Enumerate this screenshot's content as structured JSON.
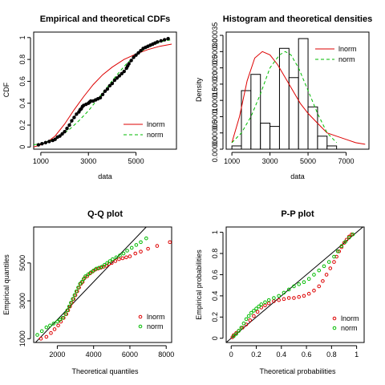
{
  "chart_data": [
    {
      "type": "line",
      "title": "Empirical and theoretical CDFs",
      "xlabel": "data",
      "ylabel": "CDF",
      "xlim": [
        700,
        6700
      ],
      "ylim": [
        -0.02,
        1.05
      ],
      "xticks": [
        1000,
        3000,
        5000
      ],
      "yticks": [
        0.0,
        0.2,
        0.4,
        0.6,
        0.8,
        1.0
      ],
      "legend_position": "bottom-right",
      "legend": [
        {
          "name": "lnorm",
          "color": "#dd0000",
          "dash": "solid"
        },
        {
          "name": "norm",
          "color": "#00bb00",
          "dash": "dashed"
        }
      ],
      "empirical_x": [
        900,
        1050,
        1200,
        1350,
        1500,
        1600,
        1700,
        1800,
        1900,
        2000,
        2100,
        2200,
        2300,
        2400,
        2500,
        2600,
        2650,
        2700,
        2750,
        2800,
        2900,
        3000,
        3050,
        3100,
        3200,
        3300,
        3400,
        3500,
        3600,
        3700,
        3800,
        3900,
        4000,
        4100,
        4200,
        4300,
        4400,
        4500,
        4600,
        4650,
        4700,
        4800,
        4900,
        5000,
        5100,
        5200,
        5300,
        5400,
        5500,
        5600,
        5700,
        5800,
        5900,
        6050,
        6200,
        6350
      ],
      "empirical_y": [
        0.02,
        0.03,
        0.04,
        0.05,
        0.06,
        0.07,
        0.09,
        0.1,
        0.12,
        0.14,
        0.17,
        0.2,
        0.24,
        0.27,
        0.3,
        0.32,
        0.34,
        0.35,
        0.37,
        0.38,
        0.39,
        0.4,
        0.41,
        0.42,
        0.42,
        0.43,
        0.44,
        0.45,
        0.48,
        0.51,
        0.53,
        0.56,
        0.58,
        0.61,
        0.63,
        0.65,
        0.67,
        0.69,
        0.72,
        0.74,
        0.76,
        0.79,
        0.82,
        0.84,
        0.86,
        0.88,
        0.9,
        0.91,
        0.92,
        0.93,
        0.94,
        0.95,
        0.96,
        0.97,
        0.98,
        0.99
      ],
      "lnorm_curve_x": [
        700,
        1000,
        1300,
        1600,
        2000,
        2400,
        2800,
        3200,
        3600,
        4000,
        4500,
        5000,
        5500,
        6000,
        6500
      ],
      "lnorm_curve_y": [
        0.0,
        0.02,
        0.05,
        0.1,
        0.21,
        0.34,
        0.46,
        0.57,
        0.66,
        0.73,
        0.8,
        0.85,
        0.89,
        0.92,
        0.94
      ],
      "norm_curve_x": [
        700,
        1000,
        1400,
        1800,
        2200,
        2600,
        3000,
        3400,
        3800,
        4200,
        4600,
        5000,
        5400,
        5800,
        6200,
        6500
      ],
      "norm_curve_y": [
        0.02,
        0.03,
        0.06,
        0.1,
        0.16,
        0.24,
        0.33,
        0.44,
        0.55,
        0.66,
        0.76,
        0.84,
        0.9,
        0.94,
        0.97,
        0.98
      ]
    },
    {
      "type": "bar",
      "title": "Histogram and theoretical densities",
      "xlabel": "data",
      "ylabel": "Density",
      "xlim": [
        700,
        8200
      ],
      "ylim": [
        0,
        0.00036
      ],
      "xticks": [
        1000,
        3000,
        5000,
        7000
      ],
      "yticks": [
        "0.00000",
        "0.00005",
        "0.00010",
        "0.00015",
        "0.00020",
        "0.00025",
        "0.00030",
        "0.00035"
      ],
      "ytick_values": [
        0,
        5e-05,
        0.0001,
        0.00015,
        0.0002,
        0.00025,
        0.0003,
        0.00035
      ],
      "legend_position": "top-right",
      "legend": [
        {
          "name": "lnorm",
          "color": "#dd0000",
          "dash": "solid"
        },
        {
          "name": "norm",
          "color": "#00bb00",
          "dash": "dashed"
        }
      ],
      "bins": [
        {
          "start": 1000,
          "end": 1500,
          "density": 1e-05
        },
        {
          "start": 1500,
          "end": 2000,
          "density": 0.00018
        },
        {
          "start": 2000,
          "end": 2500,
          "density": 0.00023
        },
        {
          "start": 2500,
          "end": 3000,
          "density": 8e-05
        },
        {
          "start": 3000,
          "end": 3500,
          "density": 7e-05
        },
        {
          "start": 3500,
          "end": 4000,
          "density": 0.00031
        },
        {
          "start": 4000,
          "end": 4500,
          "density": 0.00022
        },
        {
          "start": 4500,
          "end": 5000,
          "density": 0.00034
        },
        {
          "start": 5000,
          "end": 5500,
          "density": 0.00013
        },
        {
          "start": 5500,
          "end": 6000,
          "density": 4e-05
        },
        {
          "start": 6000,
          "end": 6500,
          "density": 1e-05
        }
      ],
      "lnorm_curve_x": [
        1000,
        1400,
        1800,
        2200,
        2600,
        3000,
        3400,
        3800,
        4200,
        4600,
        5000,
        5500,
        6000,
        6500,
        7000,
        7500,
        8000
      ],
      "lnorm_curve_y": [
        2e-05,
        0.0001,
        0.00021,
        0.00028,
        0.0003,
        0.00029,
        0.00026,
        0.00022,
        0.00018,
        0.00014,
        0.00011,
        8e-05,
        5e-05,
        4e-05,
        3e-05,
        2e-05,
        1.5e-05
      ],
      "norm_curve_x": [
        1000,
        1500,
        2000,
        2500,
        3000,
        3500,
        3800,
        4100,
        4500,
        5000,
        5500,
        6000,
        6500
      ],
      "norm_curve_y": [
        2e-05,
        5e-05,
        0.0001,
        0.00017,
        0.00025,
        0.00029,
        0.0003,
        0.00029,
        0.00025,
        0.00018,
        0.00011,
        5e-05,
        2e-05
      ]
    },
    {
      "type": "scatter",
      "title": "Q-Q plot",
      "xlabel": "Theoretical quantiles",
      "ylabel": "Empirical quantiles",
      "xlim": [
        700,
        8300
      ],
      "ylim": [
        800,
        6900
      ],
      "xticks": [
        2000,
        4000,
        6000,
        8000
      ],
      "yticks": [
        1000,
        3000,
        5000
      ],
      "legend_position": "bottom-right",
      "legend": [
        {
          "name": "lnorm",
          "color": "#dd0000",
          "marker": "circle"
        },
        {
          "name": "norm",
          "color": "#00bb00",
          "marker": "circle"
        }
      ],
      "reference_line": [
        [
          700,
          700
        ],
        [
          6900,
          6900
        ]
      ],
      "lnorm_x": [
        1100,
        1400,
        1650,
        1850,
        2050,
        2200,
        2350,
        2500,
        2600,
        2700,
        2800,
        2900,
        3000,
        3100,
        3200,
        3300,
        3400,
        3500,
        3650,
        3800,
        3950,
        4100,
        4250,
        4400,
        4550,
        4700,
        4850,
        5000,
        5200,
        5400,
        5600,
        5800,
        6000,
        6300,
        6600,
        7000,
        7500,
        8200
      ],
      "lnorm_y": [
        1000,
        1100,
        1300,
        1500,
        1700,
        1900,
        2100,
        2300,
        2500,
        2700,
        2900,
        3100,
        3300,
        3500,
        3700,
        3900,
        4000,
        4200,
        4300,
        4450,
        4550,
        4650,
        4700,
        4750,
        4800,
        4850,
        4950,
        5000,
        5100,
        5200,
        5250,
        5300,
        5350,
        5500,
        5600,
        5750,
        5900,
        6100
      ],
      "norm_x": [
        900,
        1150,
        1400,
        1600,
        1800,
        2000,
        2150,
        2300,
        2450,
        2550,
        2650,
        2750,
        2850,
        2950,
        3050,
        3150,
        3250,
        3350,
        3450,
        3550,
        3700,
        3850,
        4000,
        4150,
        4300,
        4450,
        4600,
        4750,
        4900,
        5050,
        5250,
        5450,
        5650,
        5850,
        6100,
        6350,
        6600,
        6900
      ],
      "norm_y": [
        1200,
        1400,
        1600,
        1700,
        1800,
        1900,
        2000,
        2100,
        2300,
        2500,
        2700,
        2900,
        3100,
        3300,
        3500,
        3700,
        3900,
        4000,
        4150,
        4300,
        4400,
        4500,
        4600,
        4700,
        4750,
        4800,
        4900,
        5000,
        5100,
        5200,
        5300,
        5400,
        5500,
        5650,
        5800,
        5950,
        6100,
        6300
      ]
    },
    {
      "type": "scatter",
      "title": "P-P plot",
      "xlabel": "Theoretical probabilities",
      "ylabel": "Empirical probabilities",
      "xlim": [
        -0.04,
        1.06
      ],
      "ylim": [
        -0.04,
        1.05
      ],
      "xticks": [
        0.0,
        0.2,
        0.4,
        0.6,
        0.8,
        1.0
      ],
      "yticks": [
        0.0,
        0.2,
        0.4,
        0.6,
        0.8,
        1.0
      ],
      "legend_position": "bottom-right",
      "legend": [
        {
          "name": "lnorm",
          "color": "#dd0000",
          "marker": "circle"
        },
        {
          "name": "norm",
          "color": "#00bb00",
          "marker": "circle"
        }
      ],
      "reference_line": [
        [
          -0.04,
          -0.04
        ],
        [
          1.05,
          1.05
        ]
      ],
      "lnorm_x": [
        0.01,
        0.02,
        0.04,
        0.06,
        0.09,
        0.12,
        0.15,
        0.18,
        0.21,
        0.24,
        0.27,
        0.3,
        0.34,
        0.38,
        0.42,
        0.46,
        0.5,
        0.54,
        0.58,
        0.62,
        0.66,
        0.7,
        0.73,
        0.76,
        0.79,
        0.82,
        0.84,
        0.86,
        0.88,
        0.9,
        0.92,
        0.94,
        0.96
      ],
      "lnorm_y": [
        0.01,
        0.03,
        0.05,
        0.07,
        0.1,
        0.13,
        0.17,
        0.21,
        0.25,
        0.29,
        0.31,
        0.33,
        0.35,
        0.36,
        0.37,
        0.38,
        0.38,
        0.39,
        0.4,
        0.42,
        0.45,
        0.49,
        0.54,
        0.6,
        0.66,
        0.72,
        0.77,
        0.82,
        0.86,
        0.9,
        0.93,
        0.96,
        0.98
      ],
      "norm_x": [
        0.02,
        0.04,
        0.06,
        0.08,
        0.1,
        0.12,
        0.14,
        0.16,
        0.18,
        0.2,
        0.22,
        0.24,
        0.27,
        0.3,
        0.34,
        0.38,
        0.42,
        0.46,
        0.5,
        0.54,
        0.58,
        0.62,
        0.66,
        0.7,
        0.74,
        0.78,
        0.82,
        0.85,
        0.88,
        0.91,
        0.94,
        0.97
      ],
      "norm_y": [
        0.02,
        0.04,
        0.07,
        0.1,
        0.14,
        0.18,
        0.21,
        0.24,
        0.26,
        0.28,
        0.3,
        0.32,
        0.34,
        0.36,
        0.38,
        0.4,
        0.43,
        0.46,
        0.49,
        0.51,
        0.53,
        0.56,
        0.6,
        0.64,
        0.68,
        0.72,
        0.77,
        0.82,
        0.87,
        0.91,
        0.95,
        0.98
      ]
    }
  ]
}
